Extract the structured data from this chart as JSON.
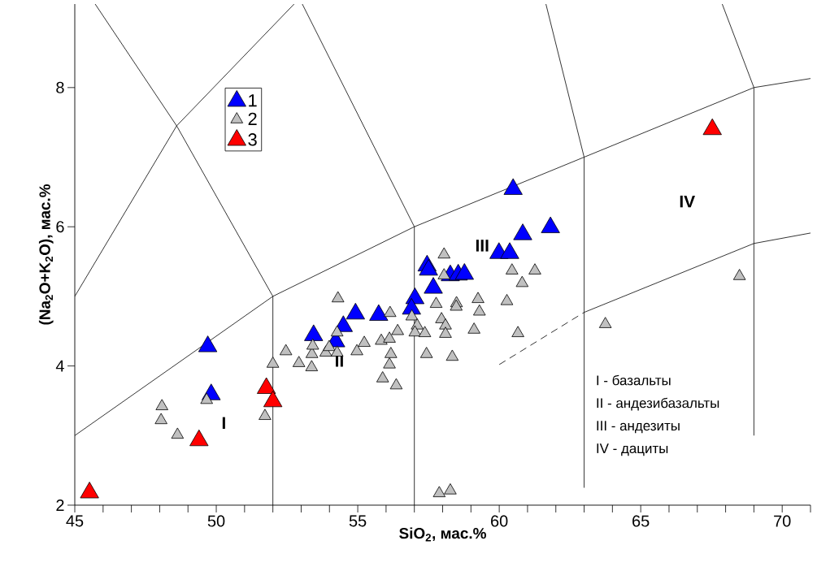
{
  "chart_data": {
    "type": "scatter",
    "xlabel": "SiO$_{2}$, мас.%",
    "ylabel": "(Na$_{2}$O+K$_{2}$O), мас.%",
    "xlim": [
      45,
      71
    ],
    "ylim": [
      2,
      9.2
    ],
    "xticks": [
      45,
      {
        "value": 46,
        "label": null
      },
      {
        "value": 47,
        "label": null
      },
      {
        "value": 48,
        "label": null
      },
      {
        "value": 49,
        "label": null
      },
      50,
      {
        "value": 51,
        "label": null
      },
      {
        "value": 52,
        "label": null
      },
      {
        "value": 53,
        "label": null
      },
      {
        "value": 54,
        "label": null
      },
      55,
      {
        "value": 56,
        "label": null
      },
      {
        "value": 57,
        "label": null
      },
      {
        "value": 58,
        "label": null
      },
      {
        "value": 59,
        "label": null
      },
      60,
      {
        "value": 61,
        "label": null
      },
      {
        "value": 62,
        "label": null
      },
      {
        "value": 63,
        "label": null
      },
      {
        "value": 64,
        "label": null
      },
      65,
      {
        "value": 66,
        "label": null
      },
      {
        "value": 67,
        "label": null
      },
      {
        "value": 68,
        "label": null
      },
      {
        "value": 69,
        "label": null
      },
      70,
      {
        "value": 71,
        "label": null
      }
    ],
    "yticks": [
      2,
      4,
      6,
      8
    ],
    "grid": false,
    "legend": "top left",
    "series": [
      {
        "name": "1",
        "marker": "triangle",
        "color": "#0000ff",
        "x": [
          49.7,
          49.82,
          53.44,
          54.22,
          54.49,
          54.92,
          55.74,
          57.02,
          56.9,
          57.45,
          57.5,
          57.67,
          58.27,
          58.55,
          58.77,
          59.99,
          60.37,
          60.49,
          60.83,
          61.81
        ],
        "values": [
          4.28,
          3.59,
          4.44,
          4.35,
          4.57,
          4.75,
          4.73,
          4.97,
          4.82,
          5.44,
          5.38,
          5.12,
          5.3,
          5.31,
          5.32,
          5.62,
          5.62,
          6.54,
          5.89,
          5.99
        ]
      },
      {
        "name": "2",
        "marker": "triangle",
        "color": "#c0c0c0",
        "x": [
          48.08,
          48.05,
          48.63,
          49.66,
          51.72,
          52.0,
          52.46,
          52.92,
          53.37,
          53.38,
          53.41,
          53.87,
          53.99,
          54.27,
          54.27,
          54.3,
          54.97,
          55.23,
          55.83,
          56.14,
          56.12,
          56.41,
          56.17,
          56.12,
          55.88,
          56.36,
          56.91,
          57.1,
          57.02,
          57.37,
          57.43,
          58.05,
          58.05,
          57.77,
          58.49,
          58.48,
          59.25,
          59.3,
          57.96,
          58.1,
          58.1,
          59.11,
          58.34,
          60.27,
          60.45,
          60.81,
          61.26,
          60.66,
          68.49,
          63.75,
          57.88,
          58.27
        ],
        "values": [
          3.42,
          3.22,
          3.01,
          3.51,
          3.28,
          4.03,
          4.21,
          4.04,
          3.98,
          4.17,
          4.29,
          4.19,
          4.27,
          4.19,
          4.48,
          4.97,
          4.21,
          4.33,
          4.36,
          4.76,
          4.39,
          4.5,
          4.17,
          4.02,
          3.82,
          3.72,
          4.71,
          4.58,
          4.48,
          4.47,
          4.17,
          5.6,
          5.3,
          4.89,
          4.9,
          4.85,
          4.96,
          4.78,
          4.67,
          4.58,
          4.46,
          4.52,
          4.13,
          4.93,
          5.37,
          5.19,
          5.37,
          4.47,
          5.29,
          4.6,
          2.17,
          2.21
        ]
      },
      {
        "name": "3",
        "marker": "triangle",
        "color": "#ff0000",
        "x": [
          45.52,
          49.39,
          51.77,
          52.0,
          67.53
        ],
        "values": [
          2.18,
          2.93,
          3.68,
          3.49,
          7.4
        ]
      },
      {
        "type": "line",
        "color": "#000000",
        "line_style": "solid",
        "x": [
          45,
          52,
          57,
          63,
          69,
          71
        ],
        "values": [
          3,
          5,
          6,
          7,
          8,
          8.13
        ]
      },
      {
        "type": "line",
        "color": "#000000",
        "line_style": "solid",
        "x": [
          45,
          48.6,
          52.75
        ],
        "values": [
          5,
          7.45,
          9.2
        ]
      },
      {
        "type": "line",
        "color": "#000000",
        "line_style": "solid",
        "x": [
          45.72,
          48.6,
          52,
          52
        ],
        "values": [
          9.2,
          7.45,
          5,
          2
        ]
      },
      {
        "type": "line",
        "color": "#000000",
        "line_style": "solid",
        "x": [
          53.04,
          57,
          57
        ],
        "values": [
          9.2,
          6,
          2
        ]
      },
      {
        "type": "line",
        "color": "#000000",
        "line_style": "solid",
        "x": [
          61.65,
          63,
          63
        ],
        "values": [
          9.2,
          7,
          2.25
        ]
      },
      {
        "type": "line",
        "color": "#000000",
        "line_style": "solid",
        "x": [
          67.88,
          69,
          69
        ],
        "values": [
          9.2,
          8,
          3
        ]
      },
      {
        "type": "line",
        "color": "#000000",
        "line_style": "solid",
        "x": [
          63,
          69,
          71
        ],
        "values": [
          4.77,
          5.76,
          5.91
        ]
      },
      {
        "type": "line",
        "color": "#000000",
        "line_style": "dashed",
        "x": [
          60,
          63
        ],
        "values": [
          4.02,
          4.77
        ]
      }
    ],
    "annotations": [
      "I",
      "II",
      "III",
      "IV",
      "I - базальты",
      "II - андезибазальты",
      "III - андезиты",
      "IV - дациты"
    ]
  }
}
